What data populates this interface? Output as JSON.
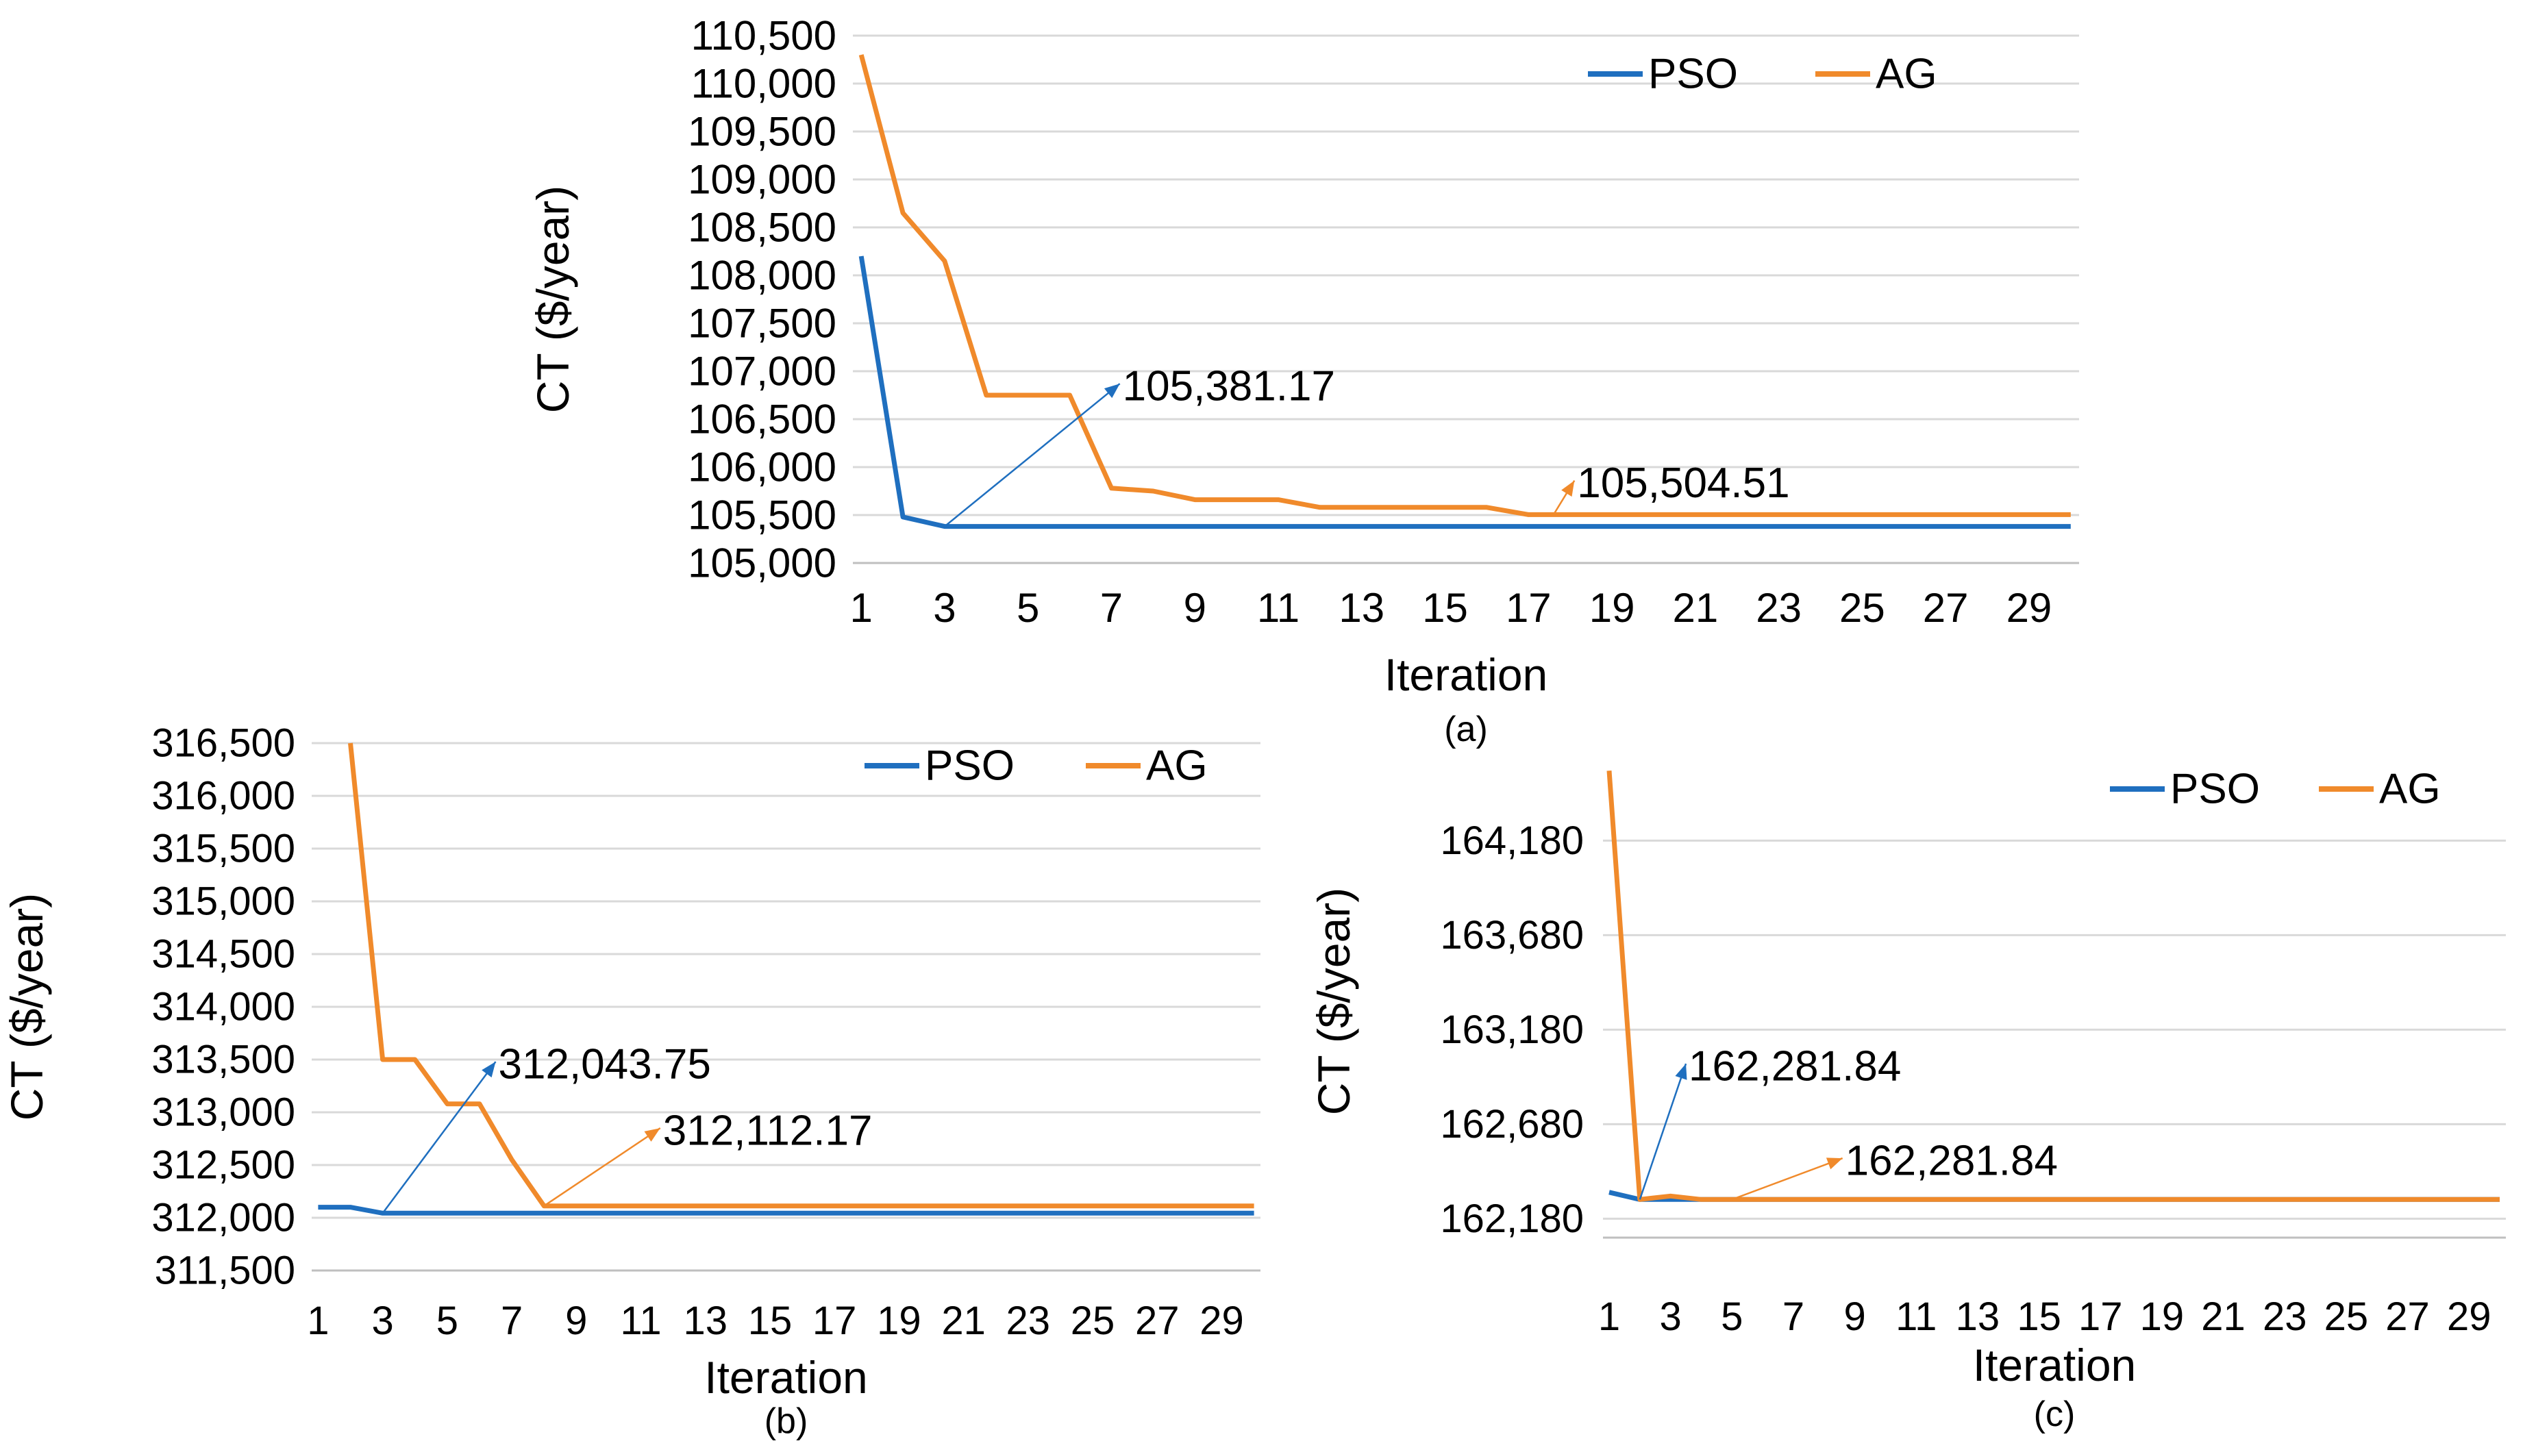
{
  "colors": {
    "pso": "#1f6fbf",
    "ag": "#f08a2b",
    "grid": "#d9d9d9",
    "axis": "#bfbfbf"
  },
  "chart_data": [
    {
      "type": "line",
      "caption": "(a)",
      "xlabel": "Iteration",
      "ylabel": "CT ($/year)",
      "x": [
        1,
        2,
        3,
        4,
        5,
        6,
        7,
        8,
        9,
        10,
        11,
        12,
        13,
        14,
        15,
        16,
        17,
        18,
        19,
        20,
        21,
        22,
        23,
        24,
        25,
        26,
        27,
        28,
        29,
        30
      ],
      "xticks": [
        "1",
        "3",
        "5",
        "7",
        "9",
        "11",
        "13",
        "15",
        "17",
        "19",
        "21",
        "23",
        "25",
        "27",
        "29"
      ],
      "yticks": [
        "105,000",
        "105,500",
        "106,000",
        "106,500",
        "107,000",
        "107,500",
        "108,000",
        "108,500",
        "109,000",
        "109,500",
        "110,000",
        "110,500"
      ],
      "ylim": [
        105000,
        110500
      ],
      "legend": [
        "PSO",
        "AG"
      ],
      "legend_position": "top-right",
      "grid": true,
      "series": [
        {
          "name": "PSO",
          "values": [
            108200,
            105480,
            105381.17,
            105381.17,
            105381.17,
            105381.17,
            105381.17,
            105381.17,
            105381.17,
            105381.17,
            105381.17,
            105381.17,
            105381.17,
            105381.17,
            105381.17,
            105381.17,
            105381.17,
            105381.17,
            105381.17,
            105381.17,
            105381.17,
            105381.17,
            105381.17,
            105381.17,
            105381.17,
            105381.17,
            105381.17,
            105381.17,
            105381.17,
            105381.17
          ]
        },
        {
          "name": "AG",
          "values": [
            110300,
            108650,
            108150,
            106750,
            106750,
            106750,
            105780,
            105750,
            105660,
            105660,
            105660,
            105580,
            105580,
            105580,
            105580,
            105580,
            105504.51,
            105504.51,
            105504.51,
            105504.51,
            105504.51,
            105504.51,
            105504.51,
            105504.51,
            105504.51,
            105504.51,
            105504.51,
            105504.51,
            105504.51,
            105504.51
          ]
        }
      ],
      "annotations": [
        {
          "text": "105,381.17",
          "series": "PSO",
          "from_x": 3,
          "from_y": 105381.17,
          "to_x": 7.2,
          "to_y": 106870
        },
        {
          "text": "105,504.51",
          "series": "AG",
          "from_x": 17.6,
          "from_y": 105504.51,
          "to_x": 18.1,
          "to_y": 105860
        }
      ]
    },
    {
      "type": "line",
      "caption": "(b)",
      "xlabel": "Iteration",
      "ylabel": "CT ($/year)",
      "x": [
        1,
        2,
        3,
        4,
        5,
        6,
        7,
        8,
        9,
        10,
        11,
        12,
        13,
        14,
        15,
        16,
        17,
        18,
        19,
        20,
        21,
        22,
        23,
        24,
        25,
        26,
        27,
        28,
        29,
        30
      ],
      "xticks": [
        "1",
        "3",
        "5",
        "7",
        "9",
        "11",
        "13",
        "15",
        "17",
        "19",
        "21",
        "23",
        "25",
        "27",
        "29"
      ],
      "yticks": [
        "311,500",
        "312,000",
        "312,500",
        "313,000",
        "313,500",
        "314,000",
        "314,500",
        "315,000",
        "315,500",
        "316,000",
        "316,500"
      ],
      "ylim": [
        311500,
        316500
      ],
      "legend": [
        "PSO",
        "AG"
      ],
      "legend_position": "top-right",
      "grid": true,
      "series": [
        {
          "name": "PSO",
          "values": [
            312100,
            312100,
            312043.75,
            312043.75,
            312043.75,
            312043.75,
            312043.75,
            312043.75,
            312043.75,
            312043.75,
            312043.75,
            312043.75,
            312043.75,
            312043.75,
            312043.75,
            312043.75,
            312043.75,
            312043.75,
            312043.75,
            312043.75,
            312043.75,
            312043.75,
            312043.75,
            312043.75,
            312043.75,
            312043.75,
            312043.75,
            312043.75,
            312043.75,
            312043.75
          ]
        },
        {
          "name": "AG",
          "values": [
            null,
            316500,
            313500,
            313500,
            313080,
            313080,
            312550,
            312112.17,
            312112.17,
            312112.17,
            312112.17,
            312112.17,
            312112.17,
            312112.17,
            312112.17,
            312112.17,
            312112.17,
            312112.17,
            312112.17,
            312112.17,
            312112.17,
            312112.17,
            312112.17,
            312112.17,
            312112.17,
            312112.17,
            312112.17,
            312112.17,
            312112.17,
            312112.17
          ]
        }
      ],
      "annotations": [
        {
          "text": "312,043.75",
          "series": "PSO",
          "from_x": 3,
          "from_y": 312043.75,
          "to_x": 6.5,
          "to_y": 313480
        },
        {
          "text": "312,112.17",
          "series": "AG",
          "from_x": 8,
          "from_y": 312112.17,
          "to_x": 11.6,
          "to_y": 312850
        }
      ]
    },
    {
      "type": "line",
      "caption": "(c)",
      "xlabel": "Iteration",
      "ylabel": "CT ($/year)",
      "x": [
        1,
        2,
        3,
        4,
        5,
        6,
        7,
        8,
        9,
        10,
        11,
        12,
        13,
        14,
        15,
        16,
        17,
        18,
        19,
        20,
        21,
        22,
        23,
        24,
        25,
        26,
        27,
        28,
        29,
        30
      ],
      "xticks": [
        "1",
        "3",
        "5",
        "7",
        "9",
        "11",
        "13",
        "15",
        "17",
        "19",
        "21",
        "23",
        "25",
        "27",
        "29"
      ],
      "yticks": [
        "162,180",
        "162,680",
        "163,180",
        "163,680",
        "164,180"
      ],
      "ylim": [
        162080,
        164580
      ],
      "legend": [
        "PSO",
        "AG"
      ],
      "legend_position": "top-right",
      "grid": true,
      "series": [
        {
          "name": "PSO",
          "values": [
            162320,
            162281.84,
            162281.84,
            162281.84,
            162281.84,
            162281.84,
            162281.84,
            162281.84,
            162281.84,
            162281.84,
            162281.84,
            162281.84,
            162281.84,
            162281.84,
            162281.84,
            162281.84,
            162281.84,
            162281.84,
            162281.84,
            162281.84,
            162281.84,
            162281.84,
            162281.84,
            162281.84,
            162281.84,
            162281.84,
            162281.84,
            162281.84,
            162281.84,
            162281.84
          ]
        },
        {
          "name": "AG",
          "values": [
            164550,
            162281.84,
            162300,
            162281.84,
            162281.84,
            162281.84,
            162281.84,
            162281.84,
            162281.84,
            162281.84,
            162281.84,
            162281.84,
            162281.84,
            162281.84,
            162281.84,
            162281.84,
            162281.84,
            162281.84,
            162281.84,
            162281.84,
            162281.84,
            162281.84,
            162281.84,
            162281.84,
            162281.84,
            162281.84,
            162281.84,
            162281.84,
            162281.84,
            162281.84
          ]
        }
      ],
      "annotations": [
        {
          "text": "162,281.84",
          "series": "PSO",
          "from_x": 2,
          "from_y": 162281.84,
          "to_x": 3.5,
          "to_y": 163000
        },
        {
          "text": "162,281.84",
          "series": "AG",
          "from_x": 5,
          "from_y": 162281.84,
          "to_x": 8.6,
          "to_y": 162500
        }
      ]
    }
  ]
}
